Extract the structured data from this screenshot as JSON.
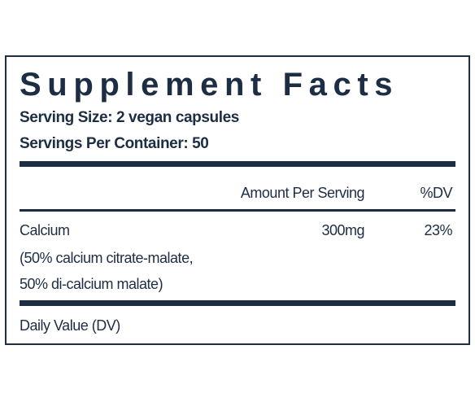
{
  "header": {
    "title": "Supplement Facts",
    "serving_size": "Serving Size: 2 vegan capsules",
    "servings_per_container": "Servings Per Container: 50"
  },
  "table": {
    "columns": [
      "Amount Per Serving",
      "%DV"
    ],
    "rows": [
      {
        "name": "Calcium",
        "amount": "300mg",
        "dv": "23%",
        "note": [
          "(50% calcium citrate-malate,",
          "50% di-calcium malate)"
        ]
      }
    ]
  },
  "footnote": "Daily Value (DV)"
}
